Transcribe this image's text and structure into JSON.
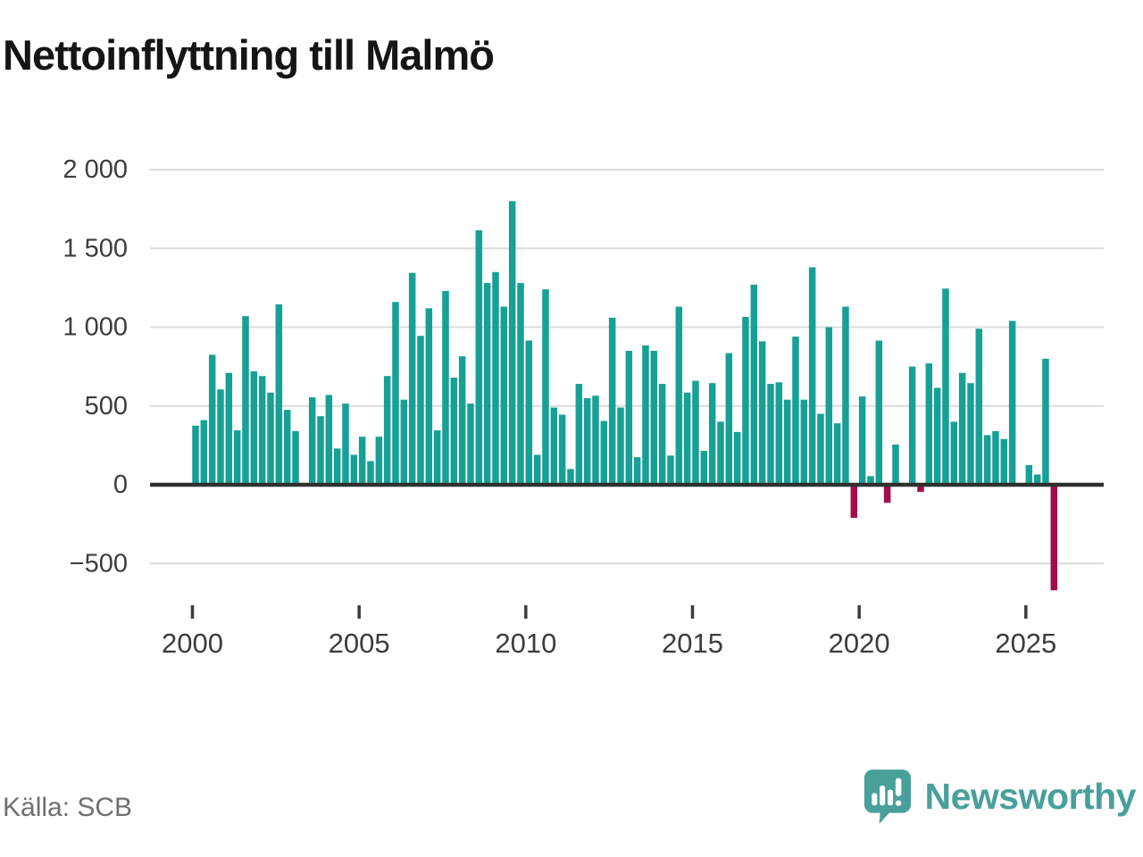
{
  "title": "Nettoinflyttning till Malmö",
  "footer": {
    "source": "Källa: SCB",
    "logo_text": "Newsworthy"
  },
  "colors": {
    "bar_positive": "#17a095",
    "bar_negative": "#a50d49",
    "logo_teal": "#49a09b",
    "title_text": "#151515",
    "axis_text": "#3c3c3c",
    "grid_line": "#dcdcdc",
    "zero_line": "#2f2f2f",
    "source_text": "#6f6f6f"
  },
  "chart_data": {
    "type": "bar",
    "title": "Nettoinflyttning till Malmö",
    "xlabel": "",
    "ylabel": "",
    "frequency": "quarterly",
    "x_start": "2000-Q1",
    "x_end": "2025-Q4",
    "grid": true,
    "legend_position": "none",
    "ylim": [
      -700,
      2100
    ],
    "y_ticks": [
      2000,
      1500,
      1000,
      500,
      0,
      -500
    ],
    "y_tick_labels": [
      "2 000",
      "1 500",
      "1 000",
      "500",
      "0",
      "−500"
    ],
    "x_ticks": [
      2000,
      2005,
      2010,
      2015,
      2020,
      2025
    ],
    "x_tick_labels": [
      "2000",
      "2005",
      "2010",
      "2015",
      "2020",
      "2025"
    ],
    "series": [
      {
        "name": "Nettoinflyttning till Malmö per kvartal",
        "values": [
          375,
          410,
          825,
          605,
          710,
          345,
          1070,
          720,
          690,
          585,
          1145,
          475,
          340,
          0,
          555,
          435,
          570,
          230,
          515,
          190,
          305,
          150,
          305,
          690,
          1160,
          540,
          1345,
          945,
          1120,
          345,
          1230,
          680,
          815,
          515,
          1615,
          1280,
          1350,
          1130,
          1800,
          1280,
          915,
          190,
          1240,
          490,
          445,
          100,
          640,
          550,
          565,
          405,
          1060,
          490,
          850,
          175,
          885,
          850,
          640,
          185,
          1130,
          585,
          660,
          215,
          645,
          400,
          835,
          335,
          1065,
          1270,
          910,
          640,
          650,
          540,
          940,
          540,
          1380,
          450,
          1000,
          390,
          1130,
          -210,
          560,
          55,
          915,
          -115,
          255,
          10,
          750,
          -45,
          770,
          615,
          1245,
          400,
          710,
          645,
          990,
          315,
          340,
          290,
          1040,
          0,
          125,
          65,
          800,
          -670
        ]
      }
    ]
  }
}
